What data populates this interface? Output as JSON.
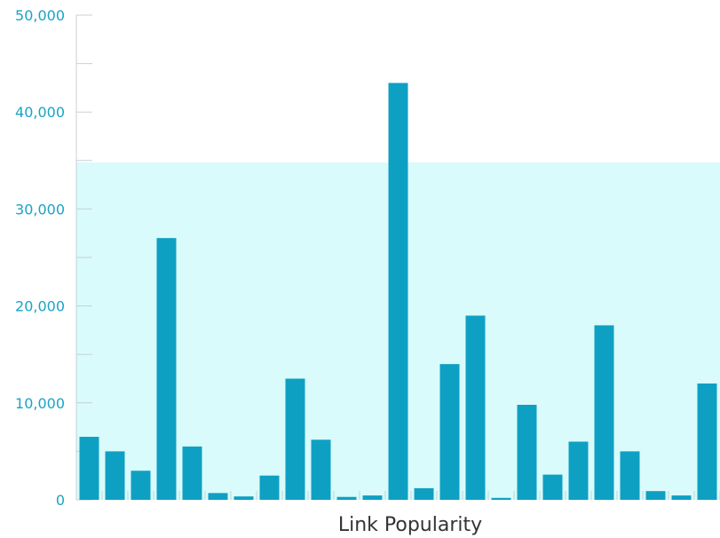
{
  "colors": {
    "bar": "#0ea0c3",
    "band": "#d9fbfb",
    "axis": "#c8d0d6",
    "tick_text": "#1aa3c6",
    "x_title": "#333333"
  },
  "chart_data": {
    "type": "bar",
    "title": "",
    "xlabel": "Link Popularity",
    "ylabel": "",
    "ylim": [
      0,
      50000
    ],
    "y_ticks": [
      {
        "value": 0,
        "label": "0"
      },
      {
        "value": 10000,
        "label": "10,000"
      },
      {
        "value": 20000,
        "label": "20,000"
      },
      {
        "value": 30000,
        "label": "30,000"
      },
      {
        "value": 40000,
        "label": "40,000"
      },
      {
        "value": 50000,
        "label": "50,000"
      }
    ],
    "y_minor_step": 5000,
    "shaded_band": {
      "from": 0,
      "to": 34800
    },
    "grid": false,
    "legend": "none",
    "values": [
      6500,
      5000,
      3000,
      27000,
      5500,
      700,
      350,
      2500,
      12500,
      6200,
      300,
      450,
      43000,
      1200,
      14000,
      19000,
      200,
      9800,
      2600,
      6000,
      18000,
      5000,
      900,
      450,
      12000
    ]
  }
}
